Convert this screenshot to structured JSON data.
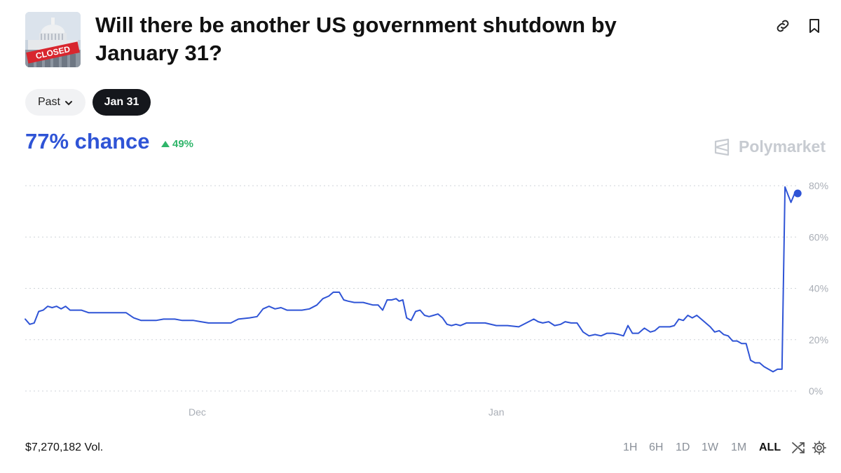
{
  "market": {
    "title": "Will there be another US government shutdown by January 31?",
    "thumbnail_label": "CLOSED"
  },
  "filters": {
    "past_label": "Past",
    "date_label": "Jan 31"
  },
  "summary": {
    "chance": "77% chance",
    "delta": "49%",
    "brand": "Polymarket"
  },
  "footer": {
    "volume": "$7,270,182 Vol.",
    "ranges": [
      "1H",
      "6H",
      "1D",
      "1W",
      "1M",
      "ALL"
    ],
    "active_range": "ALL"
  },
  "icons": {
    "link": "link-icon",
    "bookmark": "bookmark-icon",
    "shuffle": "shuffle-icon",
    "settings": "gear-icon"
  },
  "colors": {
    "line": "#2f54d6",
    "delta_up": "#2fb56a",
    "brand": "#c7cbd1"
  },
  "chart_data": {
    "type": "line",
    "ylim": [
      0,
      80
    ],
    "y_ticks": [
      "0%",
      "20%",
      "40%",
      "60%",
      "80%"
    ],
    "y_tick_values": [
      0,
      20,
      40,
      60,
      80
    ],
    "x_ticks": [
      {
        "label": "Dec",
        "t": 0.23
      },
      {
        "label": "Jan",
        "t": 0.63
      }
    ],
    "grid": true,
    "series": [
      {
        "points": [
          [
            0.0,
            28
          ],
          [
            0.006,
            26
          ],
          [
            0.012,
            26.5
          ],
          [
            0.018,
            31
          ],
          [
            0.024,
            31.5
          ],
          [
            0.03,
            33
          ],
          [
            0.036,
            32.5
          ],
          [
            0.042,
            33
          ],
          [
            0.048,
            32
          ],
          [
            0.054,
            33
          ],
          [
            0.06,
            31.5
          ],
          [
            0.075,
            31.5
          ],
          [
            0.085,
            30.5
          ],
          [
            0.105,
            30.5
          ],
          [
            0.13,
            30.5
          ],
          [
            0.135,
            30.5
          ],
          [
            0.145,
            28.5
          ],
          [
            0.155,
            27.5
          ],
          [
            0.165,
            27.5
          ],
          [
            0.175,
            27.5
          ],
          [
            0.185,
            28
          ],
          [
            0.2,
            28
          ],
          [
            0.21,
            27.5
          ],
          [
            0.225,
            27.5
          ],
          [
            0.235,
            27
          ],
          [
            0.245,
            26.5
          ],
          [
            0.255,
            26.5
          ],
          [
            0.265,
            26.5
          ],
          [
            0.275,
            26.5
          ],
          [
            0.285,
            28
          ],
          [
            0.3,
            28.5
          ],
          [
            0.31,
            29
          ],
          [
            0.318,
            32
          ],
          [
            0.326,
            33
          ],
          [
            0.334,
            32
          ],
          [
            0.342,
            32.5
          ],
          [
            0.35,
            31.5
          ],
          [
            0.36,
            31.5
          ],
          [
            0.37,
            31.5
          ],
          [
            0.38,
            32
          ],
          [
            0.39,
            33.5
          ],
          [
            0.398,
            36
          ],
          [
            0.406,
            37
          ],
          [
            0.412,
            38.5
          ],
          [
            0.42,
            38.5
          ],
          [
            0.426,
            35.5
          ],
          [
            0.432,
            35
          ],
          [
            0.44,
            34.5
          ],
          [
            0.452,
            34.5
          ],
          [
            0.465,
            33.5
          ],
          [
            0.472,
            33.5
          ],
          [
            0.478,
            31.5
          ],
          [
            0.484,
            35.5
          ],
          [
            0.49,
            35.5
          ],
          [
            0.496,
            36
          ],
          [
            0.5,
            35
          ],
          [
            0.505,
            35.5
          ],
          [
            0.51,
            28.5
          ],
          [
            0.516,
            27.5
          ],
          [
            0.522,
            31
          ],
          [
            0.528,
            31.5
          ],
          [
            0.534,
            29.5
          ],
          [
            0.54,
            29
          ],
          [
            0.546,
            29.5
          ],
          [
            0.552,
            30
          ],
          [
            0.558,
            28.5
          ],
          [
            0.564,
            26
          ],
          [
            0.57,
            25.5
          ],
          [
            0.576,
            26
          ],
          [
            0.582,
            25.5
          ],
          [
            0.59,
            26.5
          ],
          [
            0.6,
            26.5
          ],
          [
            0.615,
            26.5
          ],
          [
            0.63,
            25.5
          ],
          [
            0.645,
            25.5
          ],
          [
            0.66,
            25
          ],
          [
            0.67,
            26.5
          ],
          [
            0.68,
            28
          ],
          [
            0.686,
            27
          ],
          [
            0.692,
            26.5
          ],
          [
            0.7,
            27
          ],
          [
            0.708,
            25.5
          ],
          [
            0.716,
            26
          ],
          [
            0.722,
            27
          ],
          [
            0.73,
            26.5
          ],
          [
            0.738,
            26.5
          ],
          [
            0.746,
            23
          ],
          [
            0.754,
            21.5
          ],
          [
            0.762,
            22
          ],
          [
            0.77,
            21.5
          ],
          [
            0.778,
            22.5
          ],
          [
            0.786,
            22.5
          ],
          [
            0.794,
            22
          ],
          [
            0.8,
            21.5
          ],
          [
            0.806,
            25.5
          ],
          [
            0.812,
            22.5
          ],
          [
            0.82,
            22.5
          ],
          [
            0.828,
            24.5
          ],
          [
            0.836,
            23
          ],
          [
            0.842,
            23.5
          ],
          [
            0.848,
            25
          ],
          [
            0.856,
            25
          ],
          [
            0.862,
            25
          ],
          [
            0.868,
            25.5
          ],
          [
            0.874,
            28
          ],
          [
            0.88,
            27.5
          ],
          [
            0.886,
            29.5
          ],
          [
            0.892,
            28.5
          ],
          [
            0.898,
            29.5
          ],
          [
            0.904,
            28
          ],
          [
            0.91,
            26.5
          ],
          [
            0.916,
            25
          ],
          [
            0.922,
            23
          ],
          [
            0.928,
            23.5
          ],
          [
            0.934,
            22
          ],
          [
            0.94,
            21.5
          ],
          [
            0.946,
            19.5
          ],
          [
            0.952,
            19.5
          ],
          [
            0.958,
            18.5
          ],
          [
            0.964,
            18.5
          ],
          [
            0.97,
            12
          ],
          [
            0.976,
            11
          ],
          [
            0.982,
            11
          ],
          [
            0.988,
            9.5
          ],
          [
            0.994,
            8.5
          ],
          [
            1.0,
            7.5
          ],
          [
            1.006,
            8.5
          ],
          [
            1.012,
            8.5
          ],
          [
            1.016,
            79.5
          ],
          [
            1.02,
            76.5
          ],
          [
            1.024,
            73.5
          ],
          [
            1.029,
            77
          ],
          [
            1.033,
            77
          ]
        ]
      }
    ]
  }
}
